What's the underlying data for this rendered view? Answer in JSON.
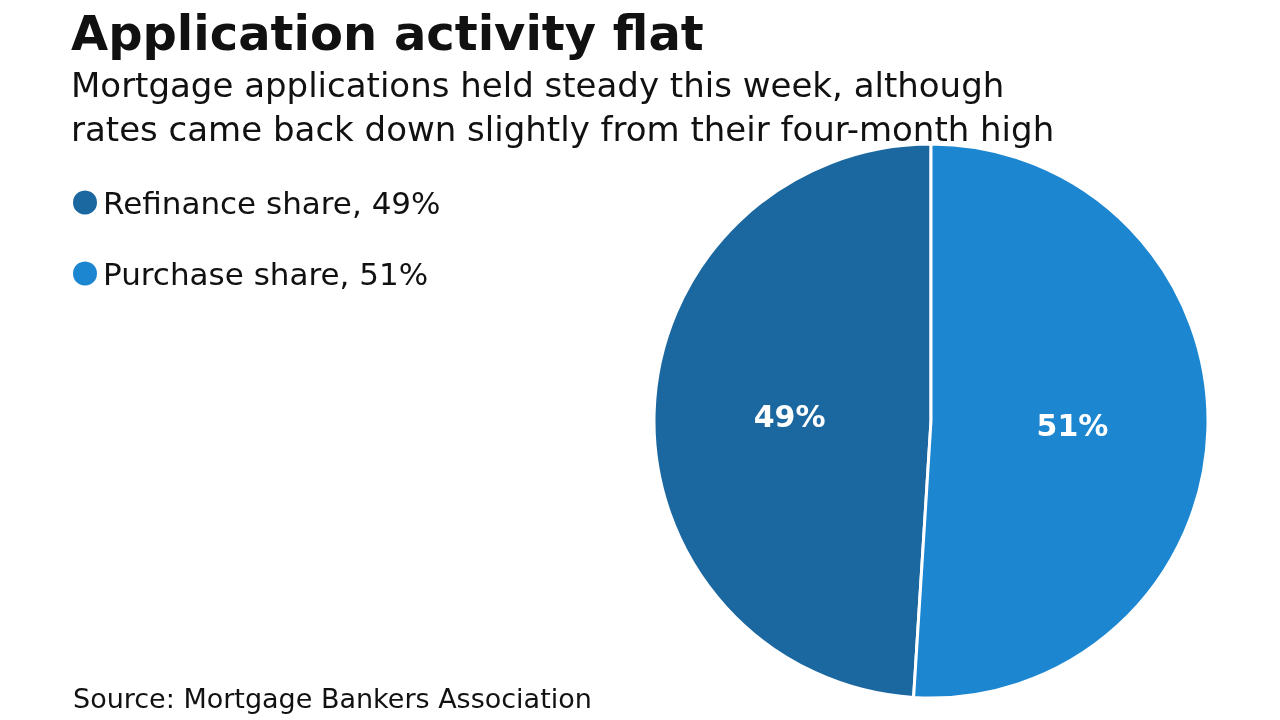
{
  "chart_data": {
    "type": "pie",
    "title": "Application activity flat",
    "subtitle": "Mortgage applications held steady this week, although rates came back down slightly from their four-month high",
    "categories": [
      "Refinance share, 49%",
      "Purchase share, 51%"
    ],
    "values": [
      49,
      51
    ],
    "colors": [
      "#1b67a0",
      "#1c86d1"
    ],
    "value_labels": [
      "49%",
      "51%"
    ],
    "legend": "top left",
    "annotations": [
      "Source: Mortgage Bankers Association"
    ]
  }
}
